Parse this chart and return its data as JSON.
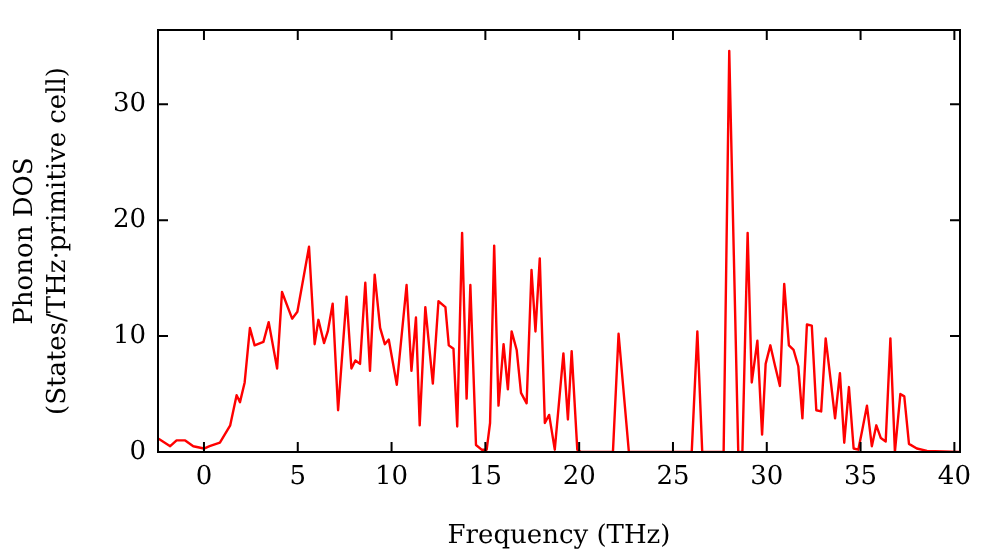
{
  "chart_data": {
    "type": "line",
    "xlabel": "Frequency (THz)",
    "ylabel": "Phonon DOS\n(States/THz·primitive cell)",
    "xlim": [
      -2.45,
      40.3
    ],
    "ylim": [
      0,
      36.4
    ],
    "xticks": [
      0,
      5,
      10,
      15,
      20,
      25,
      30,
      35,
      40
    ],
    "yticks": [
      0,
      10,
      20,
      30
    ],
    "grid": false,
    "legend": false,
    "marker": "none",
    "line_style": "solid",
    "series": [
      {
        "color": "#ff0000",
        "x": [
          -2.42,
          -1.8,
          -1.46,
          -1.0,
          -0.57,
          0,
          0.3,
          0.85,
          1.4,
          1.74,
          1.92,
          2.17,
          2.45,
          2.7,
          3.17,
          3.45,
          3.9,
          4.16,
          4.7,
          4.98,
          5.6,
          5.9,
          6.1,
          6.4,
          6.6,
          6.86,
          7.15,
          7.6,
          7.86,
          8.07,
          8.32,
          8.6,
          8.85,
          9.1,
          9.39,
          9.64,
          9.85,
          10.28,
          10.8,
          11.06,
          11.3,
          11.5,
          11.8,
          12.2,
          12.5,
          12.87,
          13.05,
          13.3,
          13.5,
          13.76,
          14.0,
          14.2,
          14.5,
          14.8,
          15.07,
          15.25,
          15.47,
          15.7,
          15.97,
          16.2,
          16.4,
          16.67,
          16.9,
          17.2,
          17.46,
          17.67,
          17.9,
          18.17,
          18.4,
          18.7,
          19.16,
          19.4,
          19.6,
          19.9,
          20.1,
          21.8,
          22.1,
          22.65,
          26.0,
          26.3,
          26.56,
          27.7,
          28.0,
          28.48,
          28.7,
          28.98,
          29.2,
          29.5,
          29.75,
          29.94,
          30.19,
          30.43,
          30.7,
          30.93,
          31.18,
          31.43,
          31.68,
          31.9,
          32.14,
          32.4,
          32.64,
          32.9,
          33.14,
          33.39,
          33.64,
          33.9,
          34.13,
          34.38,
          34.63,
          34.88,
          35.09,
          35.34,
          35.6,
          35.84,
          36.08,
          36.34,
          36.59,
          36.83,
          37.12,
          37.33,
          37.58,
          38.0,
          38.54,
          40.25
        ],
        "values": [
          1.15,
          0.5,
          1.0,
          1.0,
          0.5,
          0.3,
          0.5,
          0.8,
          2.3,
          4.9,
          4.3,
          6,
          10.7,
          9.2,
          9.5,
          11.2,
          7.2,
          13.8,
          11.5,
          12.1,
          17.7,
          9.3,
          11.4,
          9.4,
          10.4,
          12.8,
          3.6,
          13.4,
          7.2,
          7.9,
          7.6,
          14.6,
          7.0,
          15.3,
          10.7,
          9.3,
          9.7,
          5.8,
          14.4,
          7.0,
          11.6,
          2.3,
          12.5,
          5.9,
          13.0,
          12.5,
          9.2,
          8.9,
          2.2,
          18.9,
          4.6,
          14.4,
          0.6,
          0.2,
          0.2,
          2.5,
          17.8,
          4.0,
          9.3,
          5.4,
          10.4,
          8.8,
          5.1,
          4.2,
          15.7,
          10.4,
          16.7,
          2.5,
          3.2,
          0.2,
          8.5,
          2.8,
          8.7,
          0.2,
          0,
          0,
          10.2,
          0,
          0,
          10.4,
          0,
          0,
          34.6,
          0,
          0,
          18.9,
          6.0,
          9.6,
          1.5,
          7.6,
          9.2,
          7.5,
          5.7,
          14.5,
          9.2,
          8.8,
          7.4,
          2.9,
          11.0,
          10.9,
          3.6,
          3.5,
          9.8,
          6.4,
          2.9,
          6.8,
          0.8,
          5.6,
          0.3,
          0.2,
          1.9,
          4.0,
          0.5,
          2.3,
          1.2,
          0.9,
          9.8,
          0,
          5.0,
          4.8,
          0.7,
          0.3,
          0.1,
          0
        ]
      }
    ]
  }
}
